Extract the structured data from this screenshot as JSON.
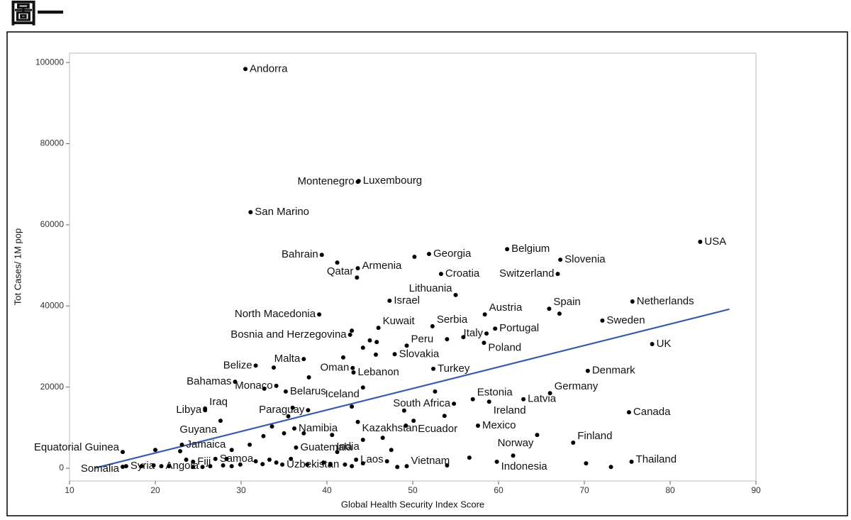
{
  "chart_data": {
    "type": "scatter",
    "title": "圖一",
    "xlabel": "Global Health Security Index Score",
    "ylabel": "Tot Cases/ 1M pop",
    "xlim": [
      10,
      90
    ],
    "xticks": [
      10,
      20,
      30,
      40,
      50,
      60,
      70,
      80,
      90
    ],
    "ylim": [
      -3150,
      102300
    ],
    "yticks": [
      0,
      20000,
      40000,
      60000,
      80000,
      100000
    ],
    "color": "#000000",
    "trendline": {
      "color": "#3a5ba8",
      "x": [
        12.9,
        86.9
      ],
      "y": [
        0,
        39200
      ]
    },
    "x": [
      30.5,
      43.7,
      43.6,
      31.1,
      39.4,
      83.5,
      51.9,
      61.0,
      67.2,
      66.9,
      43.6,
      43.5,
      53.3,
      55.0,
      47.3,
      75.6,
      65.9,
      58.4,
      39.1,
      52.3,
      46.0,
      59.6,
      58.6,
      72.1,
      42.7,
      49.3,
      58.3,
      77.9,
      47.9,
      37.3,
      31.7,
      43.0,
      43.1,
      52.4,
      70.4,
      29.3,
      34.1,
      35.2,
      44.2,
      57.0,
      66.0,
      62.9,
      54.8,
      37.8,
      25.8,
      25.8,
      58.9,
      75.2,
      27.6,
      36.2,
      43.6,
      50.1,
      57.6,
      68.7,
      64.5,
      16.2,
      23.1,
      36.4,
      44.2,
      75.5,
      43.4,
      49.3,
      59.8,
      24.4,
      27.0,
      20.7,
      16.6,
      16.2,
      34.8,
      41.2,
      50.2,
      67.1,
      55.9,
      54.0,
      42.9,
      45.0,
      45.8,
      44.2,
      41.9,
      45.7,
      33.8,
      37.9,
      32.7,
      52.6,
      35.5,
      36.0,
      49.0,
      49.2,
      53.7,
      42.9,
      33.6,
      31.0,
      32.6,
      35.0,
      37.3,
      40.6,
      47.5,
      46.5,
      41.2,
      28.9,
      20.0,
      22.9,
      23.6,
      21.6,
      19.8,
      18.4,
      25.5,
      26.4,
      27.9,
      28.9,
      29.9,
      31.7,
      32.5,
      33.3,
      34.1,
      35.8,
      37.7,
      39.6,
      40.4,
      42.1,
      42.9,
      44.2,
      47.0,
      48.2,
      54.0,
      56.6,
      61.7,
      70.2,
      73.1,
      28.3,
      24.4
    ],
    "values": [
      98400,
      70800,
      70600,
      63100,
      52600,
      55800,
      52800,
      54000,
      51400,
      47900,
      49300,
      47000,
      47900,
      42700,
      41300,
      41100,
      39300,
      37900,
      37900,
      35000,
      34600,
      34400,
      33200,
      36400,
      32900,
      30200,
      30900,
      30600,
      28100,
      26900,
      25300,
      24700,
      23600,
      24500,
      24000,
      21300,
      20300,
      18900,
      19900,
      17000,
      18500,
      17000,
      15900,
      14300,
      14300,
      14700,
      16400,
      13800,
      11700,
      9800,
      11400,
      11700,
      10500,
      6300,
      8200,
      4000,
      5800,
      5100,
      7000,
      1600,
      2100,
      500,
      1600,
      1600,
      2300,
      500,
      500,
      350,
      900,
      50700,
      52100,
      38100,
      32300,
      31800,
      33900,
      31500,
      31100,
      29700,
      27300,
      28000,
      24800,
      22400,
      19600,
      18900,
      12800,
      14900,
      14200,
      10500,
      12900,
      15200,
      10300,
      5800,
      7900,
      8600,
      8600,
      8200,
      4500,
      7500,
      4000,
      4500,
      4500,
      4200,
      2100,
      500,
      700,
      500,
      300,
      500,
      700,
      500,
      900,
      1700,
      1000,
      2100,
      1400,
      2300,
      900,
      1400,
      900,
      900,
      500,
      1200,
      1700,
      300,
      700,
      2600,
      3100,
      1200,
      300,
      2300,
      300
    ],
    "labels": [
      "Andorra",
      "Luxembourg",
      "Montenegro",
      "San Marino",
      "Bahrain",
      "USA",
      "Georgia",
      "Belgium",
      "Slovenia",
      "Switzerland",
      "Armenia",
      "Qatar",
      "Croatia",
      "Lithuania",
      "Israel",
      "Netherlands",
      "Spain",
      "Austria",
      "North Macedonia",
      "Serbia",
      "Kuwait",
      "Portugal",
      "Italy",
      "Sweden",
      "Bosnia and Herzegovina",
      "Peru",
      "Poland",
      "UK",
      "Slovakia",
      "Malta",
      "Belize",
      "Oman",
      "Lebanon",
      "Turkey",
      "Denmark",
      "Bahamas",
      "Monaco",
      "Belarus",
      "Iceland",
      "Estonia",
      "Germany",
      "Latvia",
      "South Africa",
      "Paraguay",
      "Libya",
      "Iraq",
      "Ireland",
      "Canada",
      "Guyana",
      "Namibia",
      "Kazakhstan",
      "Ecuador",
      "Mexico",
      "Finland",
      "Norway",
      "Equatorial Guinea",
      "Jamaica",
      "Guatemala",
      "India",
      "Thailand",
      "Laos",
      "Vietnam",
      "Indonesia",
      "Fiji",
      "Samoa",
      "Angola",
      "Syria",
      "Somalia",
      "Uzbekistan",
      null,
      null,
      null,
      null,
      null,
      null,
      null,
      null,
      null,
      null,
      null,
      null,
      null,
      null,
      null,
      null,
      null,
      null,
      null,
      null,
      null,
      null,
      null,
      null,
      null,
      null,
      null,
      null,
      null,
      null,
      null,
      null,
      null,
      null,
      null,
      null,
      null,
      null,
      null,
      null,
      null,
      null,
      null,
      null,
      null,
      null,
      null,
      null,
      null,
      null,
      null,
      null,
      null,
      null,
      null,
      null,
      null,
      null,
      null,
      null
    ]
  }
}
